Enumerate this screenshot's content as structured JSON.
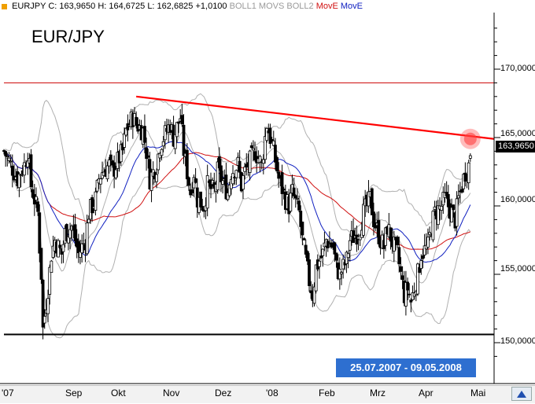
{
  "legend": {
    "symbol": "EURJPY",
    "stats": "C: 163,9650 H: 164,6725 L: 162,6825 +1,0100",
    "indicators": [
      {
        "label": "BOLL1",
        "color": "#9a9a9a"
      },
      {
        "label": "MOVS",
        "color": "#9a9a9a"
      },
      {
        "label": "BOLL2",
        "color": "#9a9a9a"
      },
      {
        "label": "MovE",
        "color": "#d01010"
      },
      {
        "label": "MovE",
        "color": "#1020c0"
      }
    ]
  },
  "title": "EUR/JPY",
  "date_range": "25.07.2007 - 09.05.2008",
  "last_value": "163,9650",
  "colors": {
    "price": "#000000",
    "bollinger": "#b0b0b0",
    "ema_long": "#d01010",
    "ema_short": "#1020c0",
    "trendline": "#ff0000",
    "resistance": "#cc0000",
    "support": "#000000",
    "highlight": "#ff4040",
    "date_box": "#2e6fd0"
  },
  "chart_data": {
    "type": "candlestick",
    "x_tick_labels": [
      "'07",
      "Sep",
      "Okt",
      "Nov",
      "Dez",
      "'08",
      "Feb",
      "Mrz",
      "Apr",
      "Mai"
    ],
    "y_tick_labels": [
      "150,0000",
      "155,0000",
      "160,0000",
      "165,0000",
      "170,0000"
    ],
    "ylim": [
      148,
      173
    ],
    "xlim": [
      "2007-07-25",
      "2008-05-09"
    ],
    "grid": false,
    "close_series": [
      [
        "2007-07-25",
        164.0
      ],
      [
        "2007-07-27",
        163.5
      ],
      [
        "2007-07-31",
        162.5
      ],
      [
        "2007-08-02",
        162.0
      ],
      [
        "2007-08-06",
        163.0
      ],
      [
        "2007-08-08",
        164.0
      ],
      [
        "2007-08-10",
        161.5
      ],
      [
        "2007-08-14",
        159.5
      ],
      [
        "2007-08-15",
        157.0
      ],
      [
        "2007-08-16",
        155.0
      ],
      [
        "2007-08-17",
        151.0
      ],
      [
        "2007-08-20",
        154.0
      ],
      [
        "2007-08-22",
        156.5
      ],
      [
        "2007-08-24",
        157.5
      ],
      [
        "2007-08-28",
        156.5
      ],
      [
        "2007-08-30",
        158.0
      ],
      [
        "2007-09-03",
        158.5
      ],
      [
        "2007-09-05",
        157.5
      ],
      [
        "2007-09-07",
        156.5
      ],
      [
        "2007-09-11",
        157.5
      ],
      [
        "2007-09-13",
        159.5
      ],
      [
        "2007-09-17",
        160.5
      ],
      [
        "2007-09-19",
        162.0
      ],
      [
        "2007-09-21",
        162.5
      ],
      [
        "2007-09-25",
        163.0
      ],
      [
        "2007-09-27",
        162.5
      ],
      [
        "2007-10-01",
        163.5
      ],
      [
        "2007-10-03",
        164.0
      ],
      [
        "2007-10-05",
        165.5
      ],
      [
        "2007-10-09",
        166.5
      ],
      [
        "2007-10-11",
        166.0
      ],
      [
        "2007-10-15",
        165.5
      ],
      [
        "2007-10-17",
        164.0
      ],
      [
        "2007-10-19",
        162.0
      ],
      [
        "2007-10-23",
        163.0
      ],
      [
        "2007-10-25",
        164.5
      ],
      [
        "2007-10-29",
        165.5
      ],
      [
        "2007-10-31",
        166.0
      ],
      [
        "2007-11-02",
        165.0
      ],
      [
        "2007-11-06",
        166.5
      ],
      [
        "2007-11-08",
        164.0
      ],
      [
        "2007-11-12",
        161.0
      ],
      [
        "2007-11-14",
        162.5
      ],
      [
        "2007-11-16",
        160.5
      ],
      [
        "2007-11-20",
        160.0
      ],
      [
        "2007-11-22",
        161.5
      ],
      [
        "2007-11-26",
        161.0
      ],
      [
        "2007-11-28",
        162.5
      ],
      [
        "2007-11-30",
        162.0
      ],
      [
        "2007-12-04",
        161.0
      ],
      [
        "2007-12-06",
        162.5
      ],
      [
        "2007-12-10",
        163.0
      ],
      [
        "2007-12-12",
        161.5
      ],
      [
        "2007-12-14",
        162.5
      ],
      [
        "2007-12-18",
        163.5
      ],
      [
        "2007-12-20",
        164.0
      ],
      [
        "2007-12-24",
        163.0
      ],
      [
        "2007-12-27",
        166.0
      ],
      [
        "2007-12-31",
        164.0
      ],
      [
        "2008-01-03",
        162.0
      ],
      [
        "2008-01-07",
        160.5
      ],
      [
        "2008-01-09",
        160.0
      ],
      [
        "2008-01-11",
        161.0
      ],
      [
        "2008-01-15",
        159.5
      ],
      [
        "2008-01-17",
        157.5
      ],
      [
        "2008-01-21",
        154.5
      ],
      [
        "2008-01-23",
        153.5
      ],
      [
        "2008-01-25",
        155.5
      ],
      [
        "2008-01-29",
        156.5
      ],
      [
        "2008-01-31",
        157.5
      ],
      [
        "2008-02-04",
        157.0
      ],
      [
        "2008-02-06",
        155.5
      ],
      [
        "2008-02-08",
        155.0
      ],
      [
        "2008-02-12",
        156.0
      ],
      [
        "2008-02-14",
        157.5
      ],
      [
        "2008-02-18",
        158.0
      ],
      [
        "2008-02-20",
        158.5
      ],
      [
        "2008-02-22",
        159.5
      ],
      [
        "2008-02-26",
        160.5
      ],
      [
        "2008-02-28",
        159.0
      ],
      [
        "2008-03-03",
        157.5
      ],
      [
        "2008-03-05",
        157.0
      ],
      [
        "2008-03-07",
        158.5
      ],
      [
        "2008-03-11",
        157.0
      ],
      [
        "2008-03-13",
        156.5
      ],
      [
        "2008-03-17",
        153.5
      ],
      [
        "2008-03-19",
        154.0
      ],
      [
        "2008-03-21",
        153.0
      ],
      [
        "2008-03-25",
        155.0
      ],
      [
        "2008-03-27",
        156.5
      ],
      [
        "2008-03-31",
        157.0
      ],
      [
        "2008-04-02",
        158.5
      ],
      [
        "2008-04-04",
        159.5
      ],
      [
        "2008-04-08",
        160.0
      ],
      [
        "2008-04-10",
        160.5
      ],
      [
        "2008-04-14",
        159.5
      ],
      [
        "2008-04-16",
        159.0
      ],
      [
        "2008-04-18",
        160.5
      ],
      [
        "2008-04-22",
        162.5
      ],
      [
        "2008-04-24",
        163.0
      ],
      [
        "2008-04-25",
        163.965
      ]
    ],
    "trendline": {
      "from": [
        "2007-10-11",
        168.0
      ],
      "to": [
        "2008-05-09",
        164.9
      ]
    },
    "resistance_level": 169.0,
    "support_level": 150.6,
    "highlight_point": [
      "2008-04-25",
      164.9
    ]
  }
}
